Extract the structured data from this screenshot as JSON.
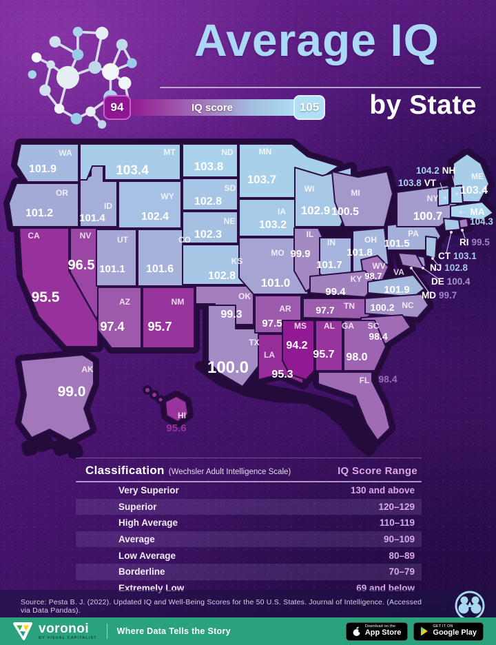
{
  "header": {
    "title": "Average IQ",
    "subtitle": "by State",
    "legend": {
      "min": "94",
      "max": "105",
      "label": "IQ score"
    }
  },
  "map": {
    "color_scale": [
      [
        94,
        "#8F1691"
      ],
      [
        96,
        "#9A3B9F"
      ],
      [
        98,
        "#9F64B1"
      ],
      [
        100,
        "#A48CC4"
      ],
      [
        102,
        "#A5BCE0"
      ],
      [
        104,
        "#A9D4ED"
      ],
      [
        105,
        "#B2DFF5"
      ]
    ],
    "silhouette_color": "#250B3C",
    "gap_color": "#2A0E45",
    "states": [
      {
        "code": "WA",
        "value": "101.9"
      },
      {
        "code": "OR",
        "value": "101.2"
      },
      {
        "code": "CA",
        "value": "95.5"
      },
      {
        "code": "NV",
        "value": "96.5"
      },
      {
        "code": "ID",
        "value": "101.4"
      },
      {
        "code": "MT",
        "value": "103.4"
      },
      {
        "code": "WY",
        "value": "102.4"
      },
      {
        "code": "UT",
        "value": "101.1"
      },
      {
        "code": "CO",
        "value": "101.6"
      },
      {
        "code": "AZ",
        "value": "97.4"
      },
      {
        "code": "NM",
        "value": "95.7"
      },
      {
        "code": "ND",
        "value": "103.8"
      },
      {
        "code": "SD",
        "value": "102.8"
      },
      {
        "code": "NE",
        "value": "102.3"
      },
      {
        "code": "KS",
        "value": "102.8"
      },
      {
        "code": "OK",
        "value": "99.3"
      },
      {
        "code": "TX",
        "value": "100.0"
      },
      {
        "code": "MN",
        "value": "103.7"
      },
      {
        "code": "IA",
        "value": "103.2"
      },
      {
        "code": "MO",
        "value": "101.0"
      },
      {
        "code": "AR",
        "value": "97.5"
      },
      {
        "code": "LA",
        "value": "95.3"
      },
      {
        "code": "WI",
        "value": "102.9"
      },
      {
        "code": "IL",
        "value": "99.9"
      },
      {
        "code": "IN",
        "value": "101.7"
      },
      {
        "code": "MI",
        "value": "100.5"
      },
      {
        "code": "OH",
        "value": "101.8"
      },
      {
        "code": "WV",
        "value": "98.7"
      },
      {
        "code": "KY",
        "value": "99.4"
      },
      {
        "code": "TN",
        "value": "97.7"
      },
      {
        "code": "VA",
        "value": "101.9"
      },
      {
        "code": "NC",
        "value": "100.2"
      },
      {
        "code": "SC",
        "value": "98.4"
      },
      {
        "code": "GA",
        "value": "98.0"
      },
      {
        "code": "AL",
        "value": "95.7"
      },
      {
        "code": "MS",
        "value": "94.2"
      },
      {
        "code": "FL",
        "value": "98.4"
      },
      {
        "code": "PA",
        "value": "101.5"
      },
      {
        "code": "NY",
        "value": "100.7"
      },
      {
        "code": "ME",
        "value": "103.4"
      },
      {
        "code": "VT",
        "value": "103.8"
      },
      {
        "code": "NH",
        "value": "104.2"
      },
      {
        "code": "MA",
        "value": "104.3"
      },
      {
        "code": "RI",
        "value": "99.5"
      },
      {
        "code": "CT",
        "value": "103.1"
      },
      {
        "code": "NJ",
        "value": "102.8"
      },
      {
        "code": "DE",
        "value": "100.4"
      },
      {
        "code": "MD",
        "value": "99.7"
      },
      {
        "code": "AK",
        "value": "99.0"
      },
      {
        "code": "HI",
        "value": "95.6"
      }
    ]
  },
  "table": {
    "header_left": "Classification",
    "header_note": "(Wechsler Adult Intelligence Scale)",
    "header_right": "IQ Score Range",
    "rows": [
      {
        "classification": "Very Superior",
        "range": "130 and above"
      },
      {
        "classification": "Superior",
        "range": "120–129"
      },
      {
        "classification": "High Average",
        "range": "110–119"
      },
      {
        "classification": "Average",
        "range": "90–109"
      },
      {
        "classification": "Low Average",
        "range": "80–89"
      },
      {
        "classification": "Borderline",
        "range": "70–79"
      },
      {
        "classification": "Extremely Low",
        "range": "69 and below"
      }
    ]
  },
  "footer": {
    "source": "Source: Pesta B. J. (2022). Updated IQ and Well-Being Scores for the 50 U.S. States. Journal of Intelligence. (Accessed via Data Pandas).",
    "brand": {
      "name": "voronoi",
      "byline": "BY VISUAL CAPITALIST",
      "tagline": "Where Data Tells the Story"
    },
    "badges": [
      {
        "pre": "Download on the",
        "store": "App Store"
      },
      {
        "pre": "GET IT ON",
        "store": "Google Play"
      }
    ],
    "accent_green": "#2AA27D"
  }
}
